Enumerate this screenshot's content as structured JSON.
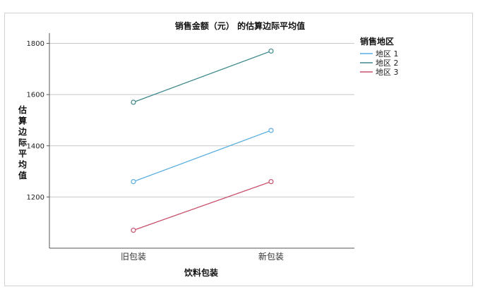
{
  "chart_data": {
    "type": "line",
    "title": "销售金额（元） 的估算边际平均值",
    "xlabel": "饮料包装",
    "ylabel": "估算边际平均值",
    "categories": [
      "旧包装",
      "新包装"
    ],
    "ylim": [
      1000,
      1840
    ],
    "yticks": [
      1200,
      1400,
      1600,
      1800
    ],
    "grid": true,
    "legend": {
      "title": "销售地区",
      "placement": "right"
    },
    "series": [
      {
        "name": "地区 1",
        "values": [
          1260,
          1460
        ],
        "color": "#5aaee0"
      },
      {
        "name": "地区 2",
        "values": [
          1570,
          1770
        ],
        "color": "#3f8a8c"
      },
      {
        "name": "地区 3",
        "values": [
          1070,
          1260
        ],
        "color": "#c8506a"
      }
    ]
  }
}
